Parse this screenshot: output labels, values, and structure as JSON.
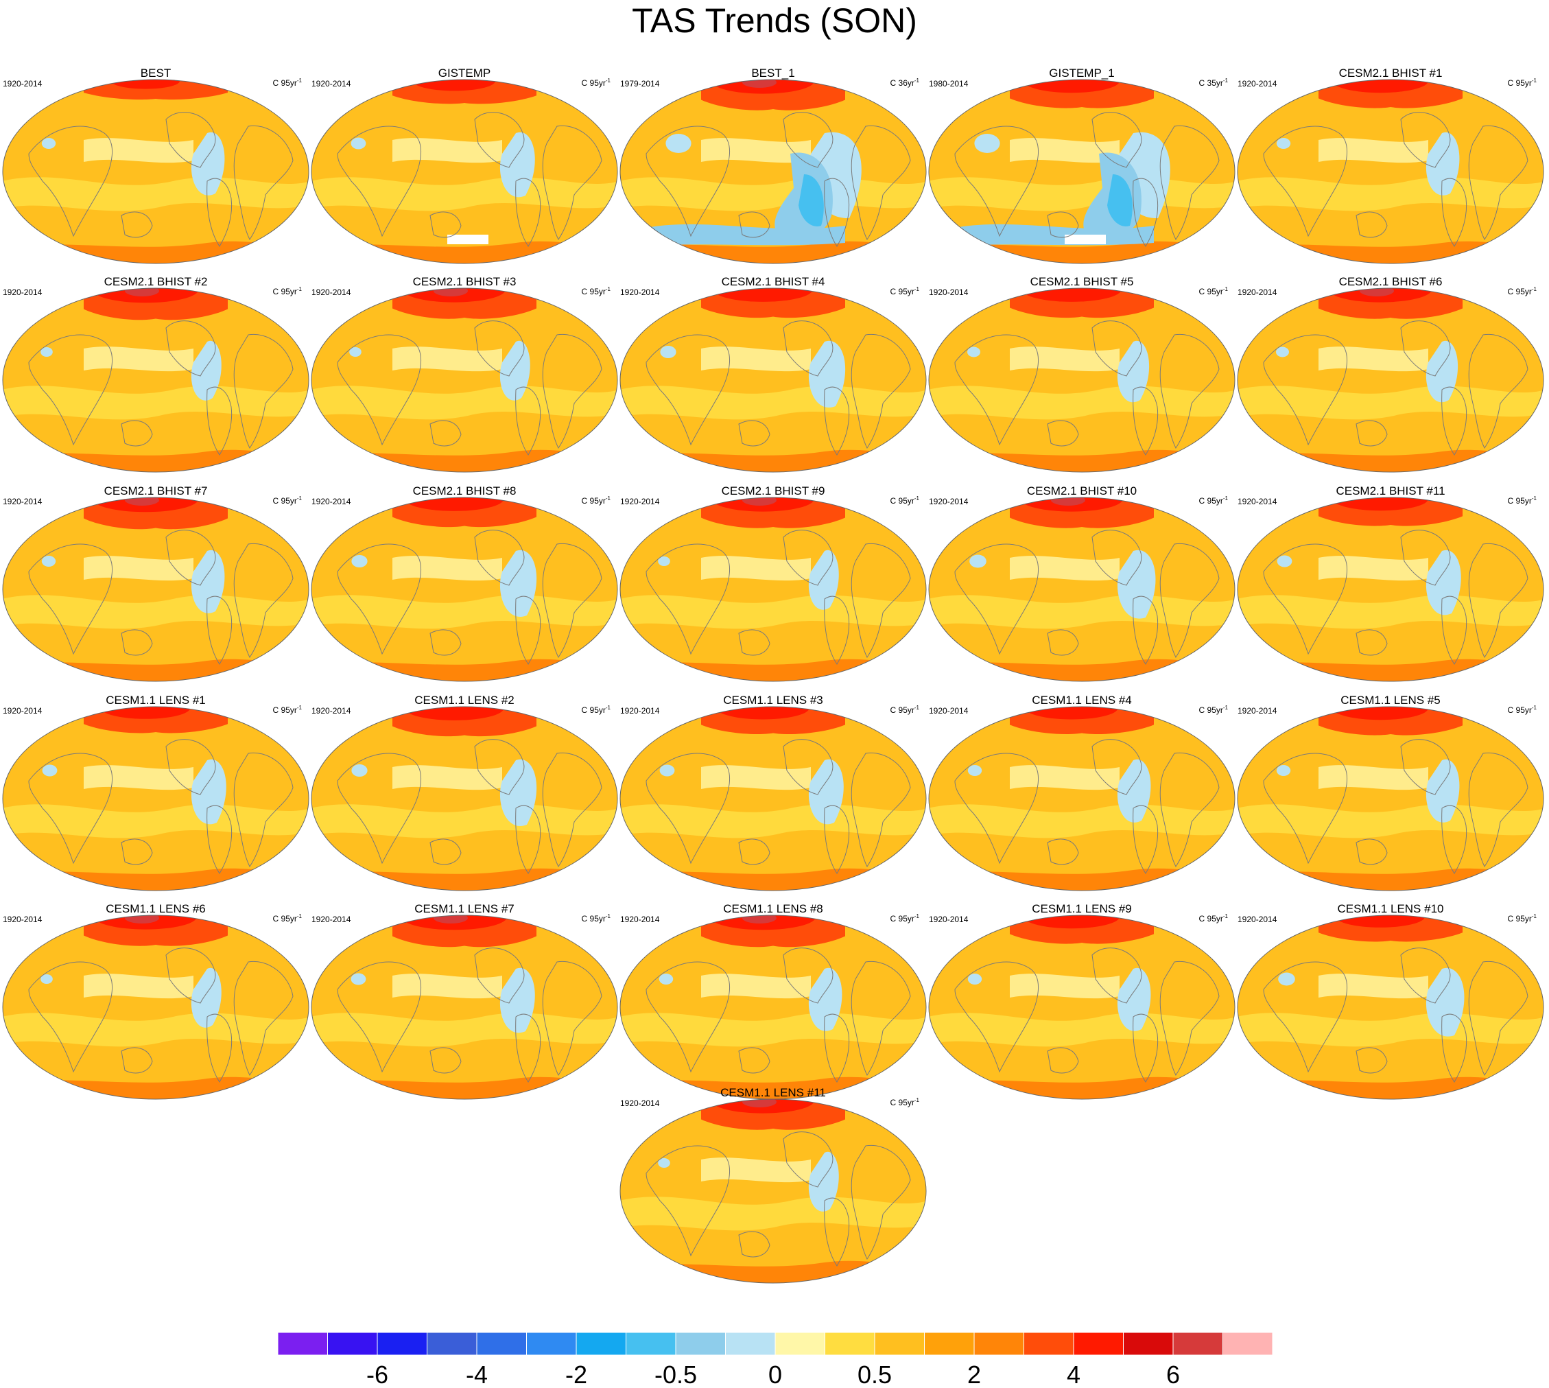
{
  "title": "TAS Trends (SON)",
  "trend_unit_prefix": "C",
  "trend_unit_suffix": "yr",
  "trend_unit_exp": "-1",
  "colors": {
    "land_outline": "#7a7a7a",
    "map_border": "#666666"
  },
  "colorbar": {
    "colors": [
      "#7b1ff0",
      "#3812f2",
      "#1a20f2",
      "#3a5ed8",
      "#2f6fe8",
      "#2f8af2",
      "#14a8f0",
      "#46c0f0",
      "#8ecdeb",
      "#b8e2f4",
      "#fff7a8",
      "#ffdd40",
      "#ffbf1f",
      "#ffa10a",
      "#ff8508",
      "#ff4d0a",
      "#ff1a00",
      "#d90a0a",
      "#d63a3a",
      "#ffb3b3"
    ],
    "labels": [
      "-6",
      "-4",
      "-2",
      "-0.5",
      "0",
      "0.5",
      "2",
      "4",
      "6"
    ]
  },
  "chart_data": {
    "type": "heatmap",
    "description_units": "surface air temperature trend, C per period",
    "panels": [
      {
        "name": "BEST",
        "period": "1920-2014",
        "span": "95",
        "cool_level": 0.3,
        "arctic_level": 0.4
      },
      {
        "name": "GISTEMP",
        "period": "1920-2014",
        "span": "95",
        "cool_level": 0.35,
        "arctic_level": 0.6,
        "missing_antarctic": true
      },
      {
        "name": "BEST_1",
        "period": "1979-2014",
        "span": "36",
        "cool_level": 0.9,
        "arctic_level": 0.9
      },
      {
        "name": "GISTEMP_1",
        "period": "1980-2014",
        "span": "35",
        "cool_level": 0.9,
        "arctic_level": 0.8,
        "missing_antarctic": true
      },
      {
        "name": "CESM2.1 BHIST #1",
        "period": "1920-2014",
        "span": "95",
        "cool_level": 0.3,
        "arctic_level": 0.8
      },
      {
        "name": "CESM2.1 BHIST #2",
        "period": "1920-2014",
        "span": "95",
        "cool_level": 0.2,
        "arctic_level": 0.95
      },
      {
        "name": "CESM2.1 BHIST #3",
        "period": "1920-2014",
        "span": "95",
        "cool_level": 0.2,
        "arctic_level": 0.9
      },
      {
        "name": "CESM2.1 BHIST #4",
        "period": "1920-2014",
        "span": "95",
        "cool_level": 0.4,
        "arctic_level": 0.85
      },
      {
        "name": "CESM2.1 BHIST #5",
        "period": "1920-2014",
        "span": "95",
        "cool_level": 0.25,
        "arctic_level": 0.85
      },
      {
        "name": "CESM2.1 BHIST #6",
        "period": "1920-2014",
        "span": "95",
        "cool_level": 0.25,
        "arctic_level": 0.9
      },
      {
        "name": "CESM2.1 BHIST #7",
        "period": "1920-2014",
        "span": "95",
        "cool_level": 0.3,
        "arctic_level": 0.95
      },
      {
        "name": "CESM2.1 BHIST #8",
        "period": "1920-2014",
        "span": "95",
        "cool_level": 0.4,
        "arctic_level": 0.85
      },
      {
        "name": "CESM2.1 BHIST #9",
        "period": "1920-2014",
        "span": "95",
        "cool_level": 0.2,
        "arctic_level": 0.9
      },
      {
        "name": "CESM2.1 BHIST #10",
        "period": "1920-2014",
        "span": "95",
        "cool_level": 0.45,
        "arctic_level": 0.9
      },
      {
        "name": "CESM2.1 BHIST #11",
        "period": "1920-2014",
        "span": "95",
        "cool_level": 0.35,
        "arctic_level": 0.8
      },
      {
        "name": "CESM1.1 LENS #1",
        "period": "1920-2014",
        "span": "95",
        "cool_level": 0.35,
        "arctic_level": 0.7
      },
      {
        "name": "CESM1.1 LENS #2",
        "period": "1920-2014",
        "span": "95",
        "cool_level": 0.4,
        "arctic_level": 0.85
      },
      {
        "name": "CESM1.1 LENS #3",
        "period": "1920-2014",
        "span": "95",
        "cool_level": 0.35,
        "arctic_level": 0.75
      },
      {
        "name": "CESM1.1 LENS #4",
        "period": "1920-2014",
        "span": "95",
        "cool_level": 0.3,
        "arctic_level": 0.75
      },
      {
        "name": "CESM1.1 LENS #5",
        "period": "1920-2014",
        "span": "95",
        "cool_level": 0.3,
        "arctic_level": 0.8
      },
      {
        "name": "CESM1.1 LENS #6",
        "period": "1920-2014",
        "span": "95",
        "cool_level": 0.2,
        "arctic_level": 0.9
      },
      {
        "name": "CESM1.1 LENS #7",
        "period": "1920-2014",
        "span": "95",
        "cool_level": 0.35,
        "arctic_level": 0.95
      },
      {
        "name": "CESM1.1 LENS #8",
        "period": "1920-2014",
        "span": "95",
        "cool_level": 0.3,
        "arctic_level": 0.95
      },
      {
        "name": "CESM1.1 LENS #9",
        "period": "1920-2014",
        "span": "95",
        "cool_level": 0.3,
        "arctic_level": 0.8
      },
      {
        "name": "CESM1.1 LENS #10",
        "period": "1920-2014",
        "span": "95",
        "cool_level": 0.45,
        "arctic_level": 0.7
      },
      {
        "name": "CESM1.1 LENS #11",
        "period": "1920-2014",
        "span": "95",
        "cool_level": 0.2,
        "arctic_level": 0.9
      }
    ]
  }
}
